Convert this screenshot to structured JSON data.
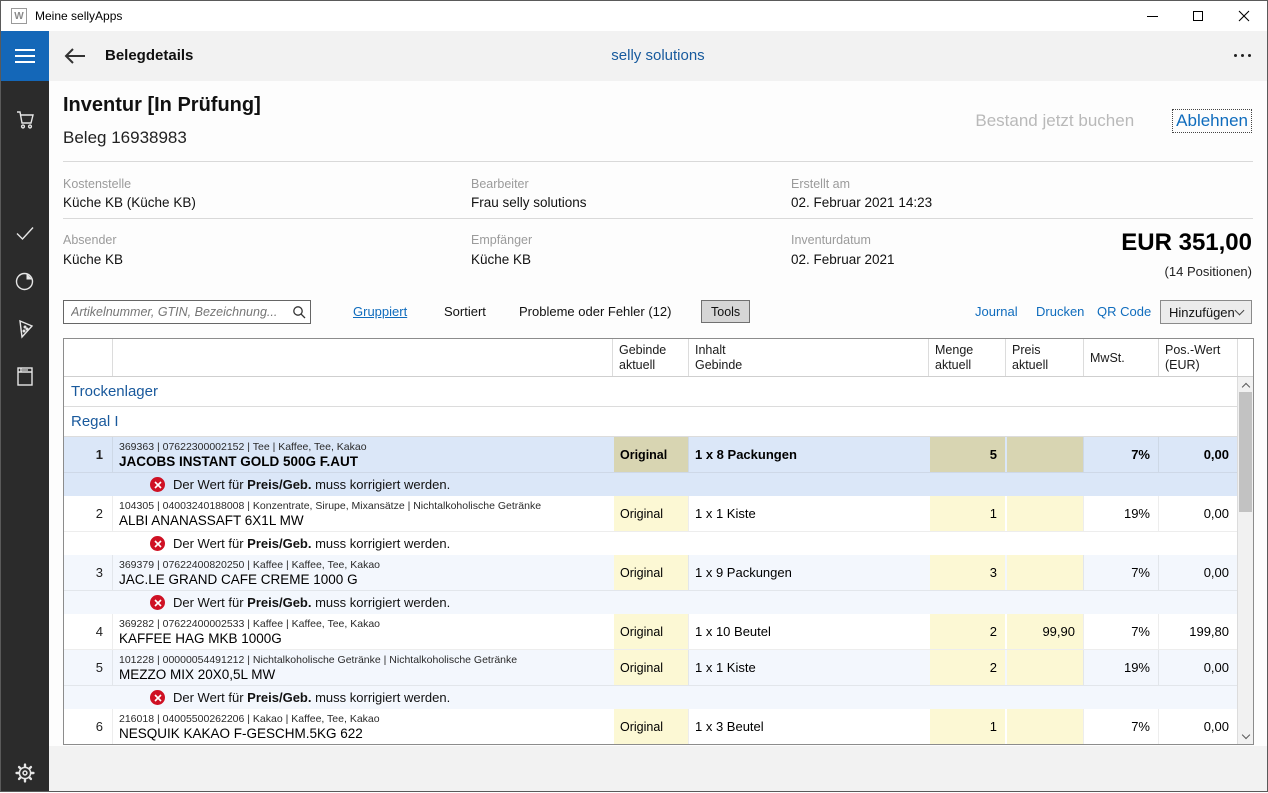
{
  "window": {
    "title": "Meine sellyApps",
    "icon": "selly-logo"
  },
  "titlebar_controls": [
    {
      "name": "minimize"
    },
    {
      "name": "maximize"
    },
    {
      "name": "close"
    }
  ],
  "appbar": {
    "title": "Belegdetails",
    "center_title": "selly solutions",
    "back_icon": "back-arrow",
    "overflow_icon": "more-ellipsis"
  },
  "sidebar": {
    "items": [
      {
        "icon": "cart"
      },
      {
        "icon": "checkmark"
      },
      {
        "icon": "pie-chart"
      },
      {
        "icon": "pizza-slice"
      },
      {
        "icon": "book"
      }
    ],
    "footer_icon": "gear"
  },
  "header": {
    "title": "Inventur [In Prüfung]",
    "subtitle": "Beleg 16938983",
    "action_disabled": "Bestand jetzt buchen",
    "action_primary": "Ablehnen"
  },
  "meta": {
    "fields": [
      {
        "label": "Kostenstelle",
        "value": "Küche KB (Küche KB)"
      },
      {
        "label": "Bearbeiter",
        "value": "Frau selly solutions"
      },
      {
        "label": "Erstellt am",
        "value": "02. Februar 2021 14:23"
      },
      {
        "label": "Absender",
        "value": "Küche KB"
      },
      {
        "label": "Empfänger",
        "value": "Küche KB"
      },
      {
        "label": "Inventurdatum",
        "value": "02. Februar 2021"
      }
    ],
    "total": "EUR 351,00",
    "positions": "(14 Positionen)"
  },
  "toolbar": {
    "search_placeholder": "Artikelnummer, GTIN, Bezeichnung...",
    "search_icon": "magnifier",
    "filter_grouped": "Gruppiert",
    "filter_sorted": "Sortiert",
    "filter_problems": "Probleme oder Fehler (12)",
    "tools_label": "Tools",
    "link_journal": "Journal",
    "link_print": "Drucken",
    "link_qr": "QR Code",
    "add_label": "Hinzufügen"
  },
  "table": {
    "columns": [
      {
        "line1": "Gebinde",
        "line2": "aktuell"
      },
      {
        "line1": "Inhalt",
        "line2": "Gebinde"
      },
      {
        "line1": "Menge",
        "line2": "aktuell"
      },
      {
        "line1": "Preis",
        "line2": "aktuell"
      },
      {
        "line1": "MwSt.",
        "line2": ""
      },
      {
        "line1": "Pos.-Wert",
        "line2": "(EUR)"
      }
    ],
    "groups": [
      {
        "label": "Trockenlager"
      },
      {
        "label": "Regal I"
      }
    ],
    "error_message": {
      "pre": "Der Wert für ",
      "bold": "Preis/Geb.",
      "post": " muss korrigiert werden."
    },
    "rows": [
      {
        "num": "1",
        "meta": "369363 | 07622300002152 | Tee | Kaffee, Tee, Kakao",
        "name": "JACOBS INSTANT GOLD 500G F.AUT",
        "gebinde": "Original",
        "inhalt": "1 x 8 Packungen",
        "menge": "5",
        "preis": "",
        "mwst": "7%",
        "wert": "0,00",
        "selected": true,
        "alt": false,
        "error": true
      },
      {
        "num": "2",
        "meta": "104305 | 04003240188008 | Konzentrate, Sirupe, Mixansätze | Nichtalkoholische Getränke",
        "name": "ALBI ANANASSAFT 6X1L MW",
        "gebinde": "Original",
        "inhalt": "1 x 1 Kiste",
        "menge": "1",
        "preis": "",
        "mwst": "19%",
        "wert": "0,00",
        "selected": false,
        "alt": false,
        "error": true
      },
      {
        "num": "3",
        "meta": "369379 | 07622400820250 | Kaffee | Kaffee, Tee, Kakao",
        "name": "JAC.LE GRAND CAFE CREME 1000 G",
        "gebinde": "Original",
        "inhalt": "1 x 9 Packungen",
        "menge": "3",
        "preis": "",
        "mwst": "7%",
        "wert": "0,00",
        "selected": false,
        "alt": true,
        "error": true
      },
      {
        "num": "4",
        "meta": "369282 | 07622400002533 | Kaffee | Kaffee, Tee, Kakao",
        "name": "KAFFEE HAG MKB 1000G",
        "gebinde": "Original",
        "inhalt": "1 x 10 Beutel",
        "menge": "2",
        "preis": "99,90",
        "mwst": "7%",
        "wert": "199,80",
        "selected": false,
        "alt": false,
        "error": false
      },
      {
        "num": "5",
        "meta": "101228 | 00000054491212 | Nichtalkoholische Getränke | Nichtalkoholische Getränke",
        "name": "MEZZO MIX 20X0,5L MW",
        "gebinde": "Original",
        "inhalt": "1 x 1 Kiste",
        "menge": "2",
        "preis": "",
        "mwst": "19%",
        "wert": "0,00",
        "selected": false,
        "alt": true,
        "error": true
      },
      {
        "num": "6",
        "meta": "216018 | 04005500262206 | Kakao | Kaffee, Tee, Kakao",
        "name": "NESQUIK KAKAO F-GESCHM.5KG 622",
        "gebinde": "Original",
        "inhalt": "1 x 3 Beutel",
        "menge": "1",
        "preis": "",
        "mwst": "7%",
        "wert": "0,00",
        "selected": false,
        "alt": false,
        "error": false
      }
    ]
  },
  "colors": {
    "accent_blue": "#1467b8",
    "link_blue": "#0f6cbd",
    "group_blue": "#19599c",
    "selected_row": "#dbe7f8",
    "alt_row": "#f3f7fd",
    "cell_khaki": "#d8d5b2",
    "cell_yellow": "#fcf8d4",
    "error_red": "#cf1124",
    "rail_dark": "#2b2b2b"
  }
}
